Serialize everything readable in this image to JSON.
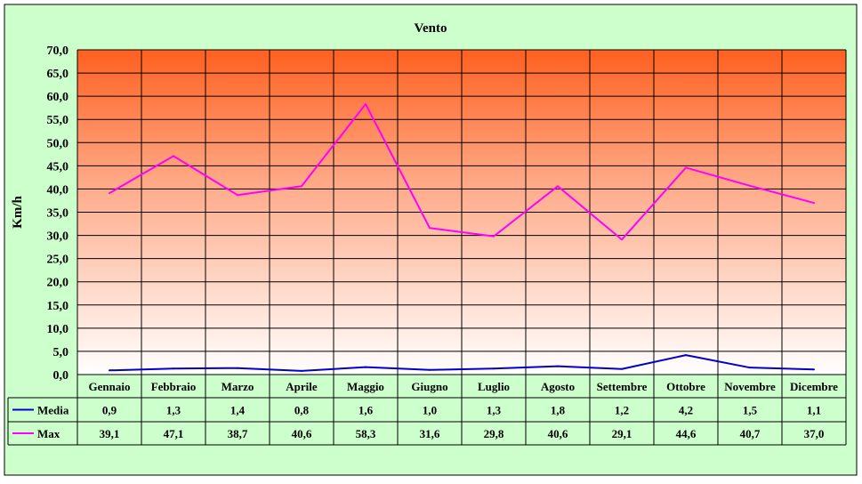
{
  "chart_data": {
    "type": "line",
    "title": "Vento",
    "ylabel": "Km/h",
    "xlabel": "",
    "categories": [
      "Gennaio",
      "Febbraio",
      "Marzo",
      "Aprile",
      "Maggio",
      "Giugno",
      "Luglio",
      "Agosto",
      "Settembre",
      "Ottobre",
      "Novembre",
      "Dicembre"
    ],
    "series": [
      {
        "name": "Media",
        "color": "#0000cc",
        "values": [
          0.9,
          1.3,
          1.4,
          0.8,
          1.6,
          1.0,
          1.3,
          1.8,
          1.2,
          4.2,
          1.5,
          1.1
        ],
        "labels": [
          "0,9",
          "1,3",
          "1,4",
          "0,8",
          "1,6",
          "1,0",
          "1,3",
          "1,8",
          "1,2",
          "4,2",
          "1,5",
          "1,1"
        ]
      },
      {
        "name": "Max",
        "color": "#ff00ff",
        "values": [
          39.1,
          47.1,
          38.7,
          40.6,
          58.3,
          31.6,
          29.8,
          40.6,
          29.1,
          44.6,
          40.7,
          37.0
        ],
        "labels": [
          "39,1",
          "47,1",
          "38,7",
          "40,6",
          "58,3",
          "31,6",
          "29,8",
          "40,6",
          "29,1",
          "44,6",
          "40,7",
          "37,0"
        ]
      }
    ],
    "ylim": [
      0,
      70
    ],
    "yticks": [
      0,
      5,
      10,
      15,
      20,
      25,
      30,
      35,
      40,
      45,
      50,
      55,
      60,
      65,
      70
    ],
    "ytick_labels": [
      "0,0",
      "5,0",
      "10,0",
      "15,0",
      "20,0",
      "25,0",
      "30,0",
      "35,0",
      "40,0",
      "45,0",
      "50,0",
      "55,0",
      "60,0",
      "65,0",
      "70,0"
    ],
    "grid": true,
    "legend": "data-table",
    "colors": {
      "chart_background": "#ccffcc",
      "plot_top": "#ff6020",
      "plot_bottom": "#ffffff",
      "grid": "#000000"
    }
  }
}
